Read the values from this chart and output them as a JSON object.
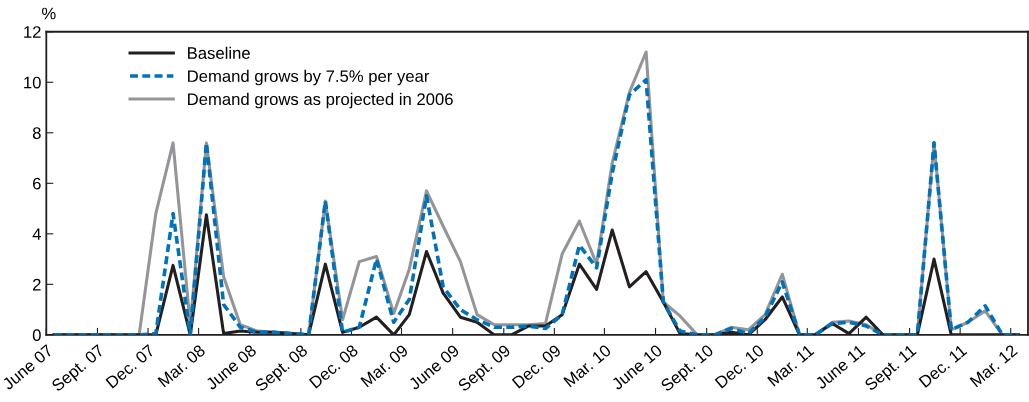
{
  "chart_data": {
    "type": "line",
    "ylabel": "%",
    "x": [
      "2007-06-15",
      "2007-07-15",
      "2007-08-15",
      "2007-09-15",
      "2007-10-15",
      "2007-11-15",
      "2007-12-15",
      "2008-01-15",
      "2008-02-15",
      "2008-03-15",
      "2008-04-15",
      "2008-05-15",
      "2008-06-15",
      "2008-07-15",
      "2008-08-15",
      "2008-09-15",
      "2008-10-15",
      "2008-11-15",
      "2008-12-15",
      "2009-01-15",
      "2009-02-15",
      "2009-03-15",
      "2009-04-15",
      "2009-05-15",
      "2009-06-15",
      "2009-07-15",
      "2009-08-15",
      "2009-09-15",
      "2009-10-15",
      "2009-11-15",
      "2009-12-15",
      "2010-01-15",
      "2010-02-15",
      "2010-03-15",
      "2010-04-15",
      "2010-05-15",
      "2010-06-15",
      "2010-07-15",
      "2010-08-15",
      "2010-09-15",
      "2010-10-15",
      "2010-11-15",
      "2010-12-15",
      "2011-01-15",
      "2011-02-15",
      "2011-03-15",
      "2011-04-15",
      "2011-05-15",
      "2011-06-15",
      "2011-07-15",
      "2011-08-15",
      "2011-09-15",
      "2011-10-15",
      "2011-11-15",
      "2011-12-15",
      "2012-01-15",
      "2012-02-15",
      "2012-03-15"
    ],
    "xlim": [
      "2007-06-01",
      "2012-04-01"
    ],
    "xticks": [
      {
        "value": "2007-06",
        "label": "June 07"
      },
      {
        "value": "2007-09",
        "label": "Sept. 07"
      },
      {
        "value": "2007-12",
        "label": "Dec. 07"
      },
      {
        "value": "2008-03",
        "label": "Mar. 08"
      },
      {
        "value": "2008-06",
        "label": "June 08"
      },
      {
        "value": "2008-09",
        "label": "Sept. 08"
      },
      {
        "value": "2008-12",
        "label": "Dec. 08"
      },
      {
        "value": "2009-03",
        "label": "Mar. 09"
      },
      {
        "value": "2009-06",
        "label": "June 09"
      },
      {
        "value": "2009-09",
        "label": "Sept. 09"
      },
      {
        "value": "2009-12",
        "label": "Dec. 09"
      },
      {
        "value": "2010-03",
        "label": "Mar. 10"
      },
      {
        "value": "2010-06",
        "label": "June 10"
      },
      {
        "value": "2010-09",
        "label": "Sept. 10"
      },
      {
        "value": "2010-12",
        "label": "Dec. 10"
      },
      {
        "value": "2011-03",
        "label": "Mar. 11"
      },
      {
        "value": "2011-06",
        "label": "June 11"
      },
      {
        "value": "2011-09",
        "label": "Sept. 11"
      },
      {
        "value": "2011-12",
        "label": "Dec. 11"
      },
      {
        "value": "2012-03",
        "label": "Mar. 12"
      }
    ],
    "ylim": [
      0,
      12
    ],
    "yticks": [
      0,
      2,
      4,
      6,
      8,
      10,
      12
    ],
    "grid": false,
    "legend": "top left",
    "marker": "none",
    "series": [
      {
        "name": "Baseline",
        "color": "#231f20",
        "line_style": "solid",
        "values": [
          0,
          0,
          0,
          0,
          0,
          0,
          0,
          2.75,
          0,
          4.75,
          0.05,
          0.15,
          0.1,
          0.1,
          0.05,
          0,
          2.8,
          0.1,
          0.3,
          0.7,
          0,
          0.8,
          3.3,
          1.65,
          0.7,
          0.5,
          0,
          0,
          0.35,
          0.35,
          0.8,
          2.8,
          1.8,
          4.15,
          1.9,
          2.5,
          1.3,
          0.05,
          0,
          0,
          0.1,
          0,
          0.6,
          1.5,
          0,
          0,
          0.45,
          0.05,
          0.7,
          0,
          0,
          0,
          3.0,
          0,
          0,
          0,
          0,
          0
        ]
      },
      {
        "name": "Demand grows by 7.5% per year",
        "color": "#0072bc",
        "line_style": "dashed",
        "values": [
          0,
          0,
          0,
          0,
          0,
          0,
          0.05,
          4.8,
          0,
          7.6,
          1.2,
          0.3,
          0.1,
          0.1,
          0.05,
          0,
          5.3,
          0.1,
          0.3,
          3.0,
          0.5,
          1.4,
          5.5,
          1.9,
          1.0,
          0.6,
          0.3,
          0.3,
          0.35,
          0.25,
          0.8,
          3.55,
          2.65,
          6.4,
          9.5,
          10.1,
          1.3,
          0.15,
          0,
          0,
          0.25,
          0.05,
          0.7,
          2.1,
          0,
          0,
          0.45,
          0.5,
          0.35,
          0,
          0,
          0,
          7.6,
          0.2,
          0.5,
          1.15,
          0,
          0
        ]
      },
      {
        "name": "Demand grows as projected in 2006",
        "color": "#939598",
        "line_style": "solid",
        "values": [
          0,
          0,
          0,
          0,
          0,
          0,
          4.8,
          7.6,
          0.4,
          7.6,
          2.3,
          0.4,
          0.15,
          0.1,
          0.05,
          0,
          5.3,
          0.6,
          2.9,
          3.1,
          0.85,
          2.6,
          5.7,
          4.3,
          2.9,
          0.8,
          0.4,
          0.4,
          0.4,
          0.45,
          3.2,
          4.5,
          2.8,
          6.8,
          9.6,
          11.2,
          1.3,
          0.75,
          0,
          0,
          0.3,
          0.2,
          0.8,
          2.4,
          0,
          0,
          0.5,
          0.55,
          0.4,
          0,
          0,
          0,
          7.6,
          0.2,
          0.5,
          0.95,
          0,
          0
        ]
      }
    ]
  }
}
